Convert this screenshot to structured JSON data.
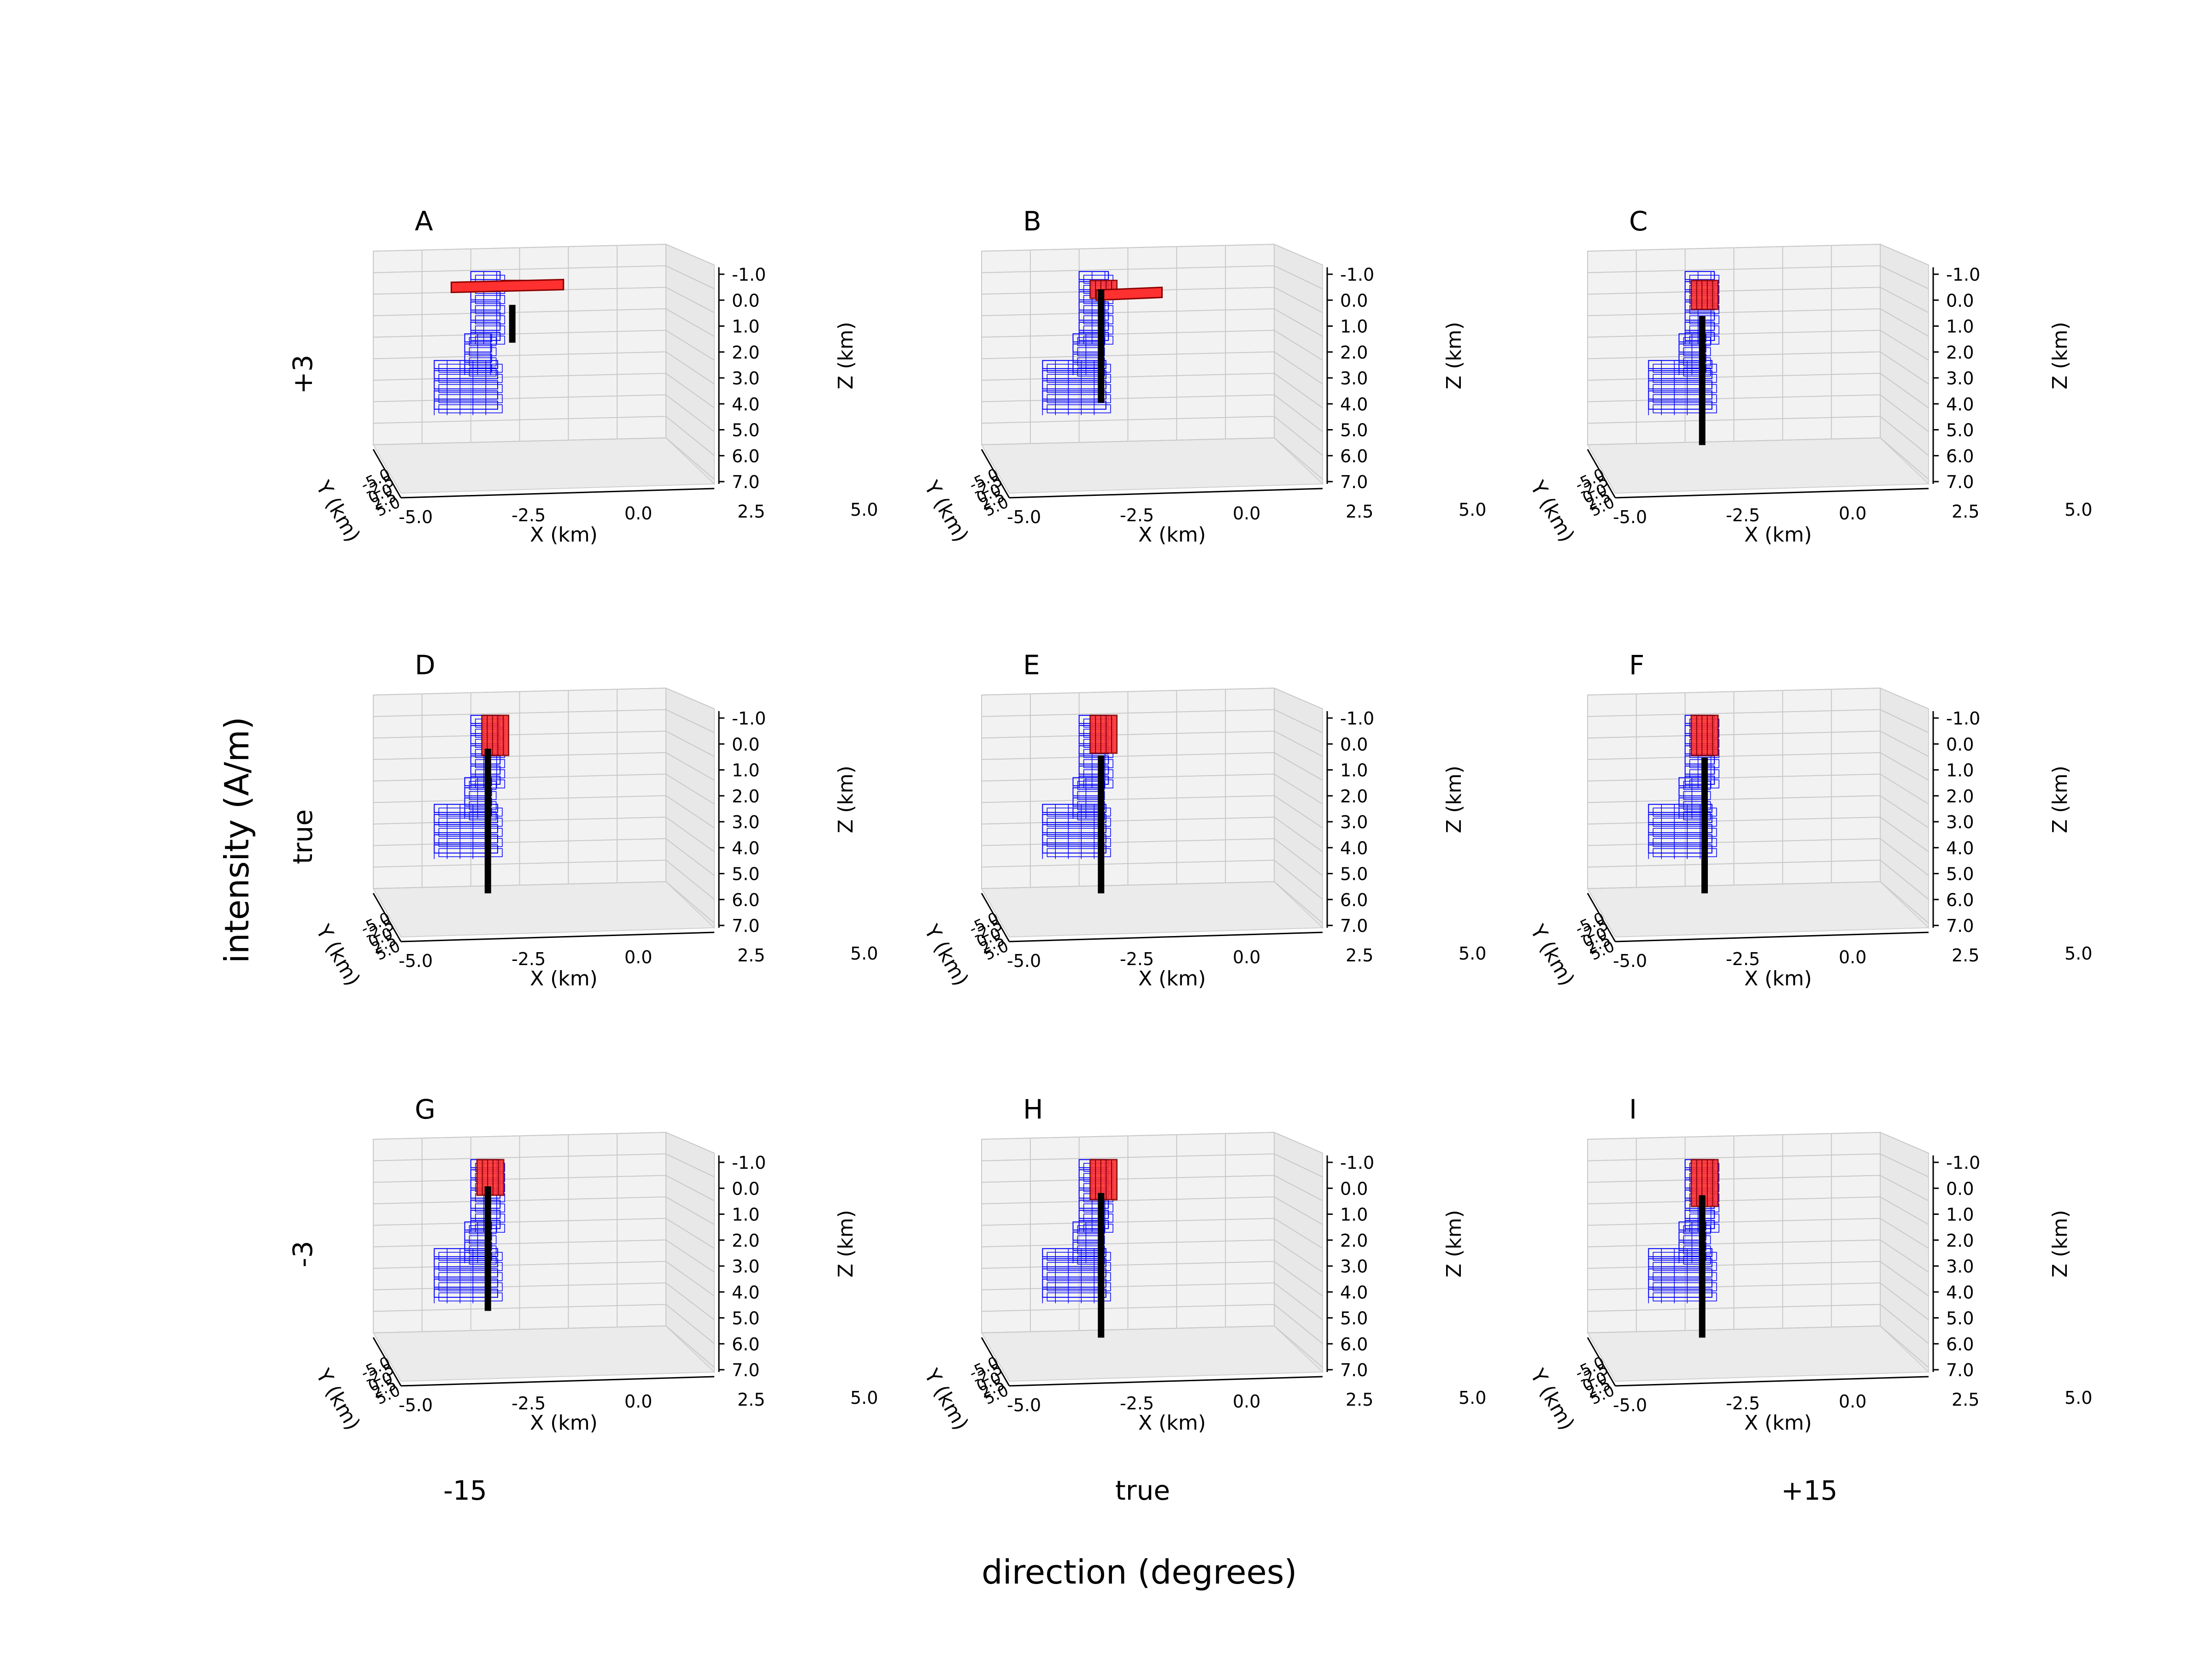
{
  "figure": {
    "xlabel": "direction (degrees)",
    "ylabel": "intensity (A/m)",
    "row_labels": [
      "+3",
      "true",
      "-3"
    ],
    "col_labels": [
      "-15",
      "true",
      "+15"
    ]
  },
  "colors": {
    "prism_edge": "#0000ff",
    "body_fill": "#ff3030",
    "body_edge": "#8b0000",
    "vector": "#000000",
    "pane": "#f2f2f2",
    "grid": "#c8c8c8"
  },
  "chart_data": {
    "type": "3d-scatter",
    "axes": {
      "x": {
        "label": "X (km)",
        "ticks": [
          "-5.0",
          "-2.5",
          "0.0",
          "2.5",
          "5.0"
        ],
        "range": [
          -6,
          6
        ]
      },
      "y": {
        "label": "Y (km)",
        "ticks": [
          "-5.0",
          "-2.5",
          "0.0",
          "2.5",
          "5.0"
        ],
        "range": [
          -6,
          6
        ]
      },
      "z": {
        "label": "Z (km)",
        "ticks": [
          "-1.0",
          "0.0",
          "1.0",
          "2.0",
          "3.0",
          "4.0",
          "5.0",
          "6.0",
          "7.0"
        ],
        "range": [
          -1.5,
          7.2
        ],
        "inverted": true
      }
    },
    "panels": [
      {
        "letter": "A",
        "intensity": "+3",
        "direction": "-15",
        "vector_top": 0.5,
        "vector_bottom": 2.2,
        "vector_x": -0.3,
        "body": {
          "x": -0.2,
          "z0": -0.6,
          "z1": -0.2
        },
        "sheet": {
          "x0": -2.8,
          "x1": 1.8,
          "z": -0.35
        }
      },
      {
        "letter": "B",
        "intensity": "+3",
        "direction": "true",
        "vector_top": -0.2,
        "vector_bottom": 4.9,
        "vector_x": -1.1,
        "body": {
          "x": -1.0,
          "z0": -0.6,
          "z1": 0.2
        },
        "sheet": {
          "x0": -1.3,
          "x1": 1.4,
          "z": 0.0
        }
      },
      {
        "letter": "C",
        "intensity": "+3",
        "direction": "+15",
        "vector_top": 1.0,
        "vector_bottom": 6.8,
        "vector_x": -1.3,
        "body": {
          "x": -1.2,
          "z0": -0.6,
          "z1": 0.7
        }
      },
      {
        "letter": "D",
        "intensity": "true",
        "direction": "-15",
        "vector_top": 0.5,
        "vector_bottom": 7.0,
        "vector_x": -1.3,
        "body": {
          "x": -1.0,
          "z0": -1.0,
          "z1": 0.8
        }
      },
      {
        "letter": "E",
        "intensity": "true",
        "direction": "true",
        "vector_top": 0.8,
        "vector_bottom": 7.0,
        "vector_x": -1.1,
        "body": {
          "x": -1.0,
          "z0": -1.0,
          "z1": 0.7
        }
      },
      {
        "letter": "F",
        "intensity": "true",
        "direction": "+15",
        "vector_top": 0.9,
        "vector_bottom": 7.0,
        "vector_x": -1.2,
        "body": {
          "x": -1.2,
          "z0": -1.0,
          "z1": 0.8
        }
      },
      {
        "letter": "G",
        "intensity": "-3",
        "direction": "-15",
        "vector_top": 0.2,
        "vector_bottom": 5.8,
        "vector_x": -1.3,
        "body": {
          "x": -1.2,
          "z0": -1.0,
          "z1": 0.6
        }
      },
      {
        "letter": "H",
        "intensity": "-3",
        "direction": "true",
        "vector_top": 0.5,
        "vector_bottom": 7.0,
        "vector_x": -1.1,
        "body": {
          "x": -1.0,
          "z0": -1.0,
          "z1": 0.8
        }
      },
      {
        "letter": "I",
        "intensity": "-3",
        "direction": "+15",
        "vector_top": 0.6,
        "vector_bottom": 7.0,
        "vector_x": -1.3,
        "body": {
          "x": -1.2,
          "z0": -1.0,
          "z1": 1.1
        }
      }
    ],
    "source_prisms": [
      {
        "x": -1.4,
        "z0": -1.0,
        "z1": 1.8,
        "w": 1.2
      },
      {
        "x": -1.7,
        "z0": 1.8,
        "z1": 3.2,
        "w": 1.1
      },
      {
        "x": -2.2,
        "z0": 3.0,
        "z1": 5.0,
        "w": 2.6
      }
    ]
  }
}
